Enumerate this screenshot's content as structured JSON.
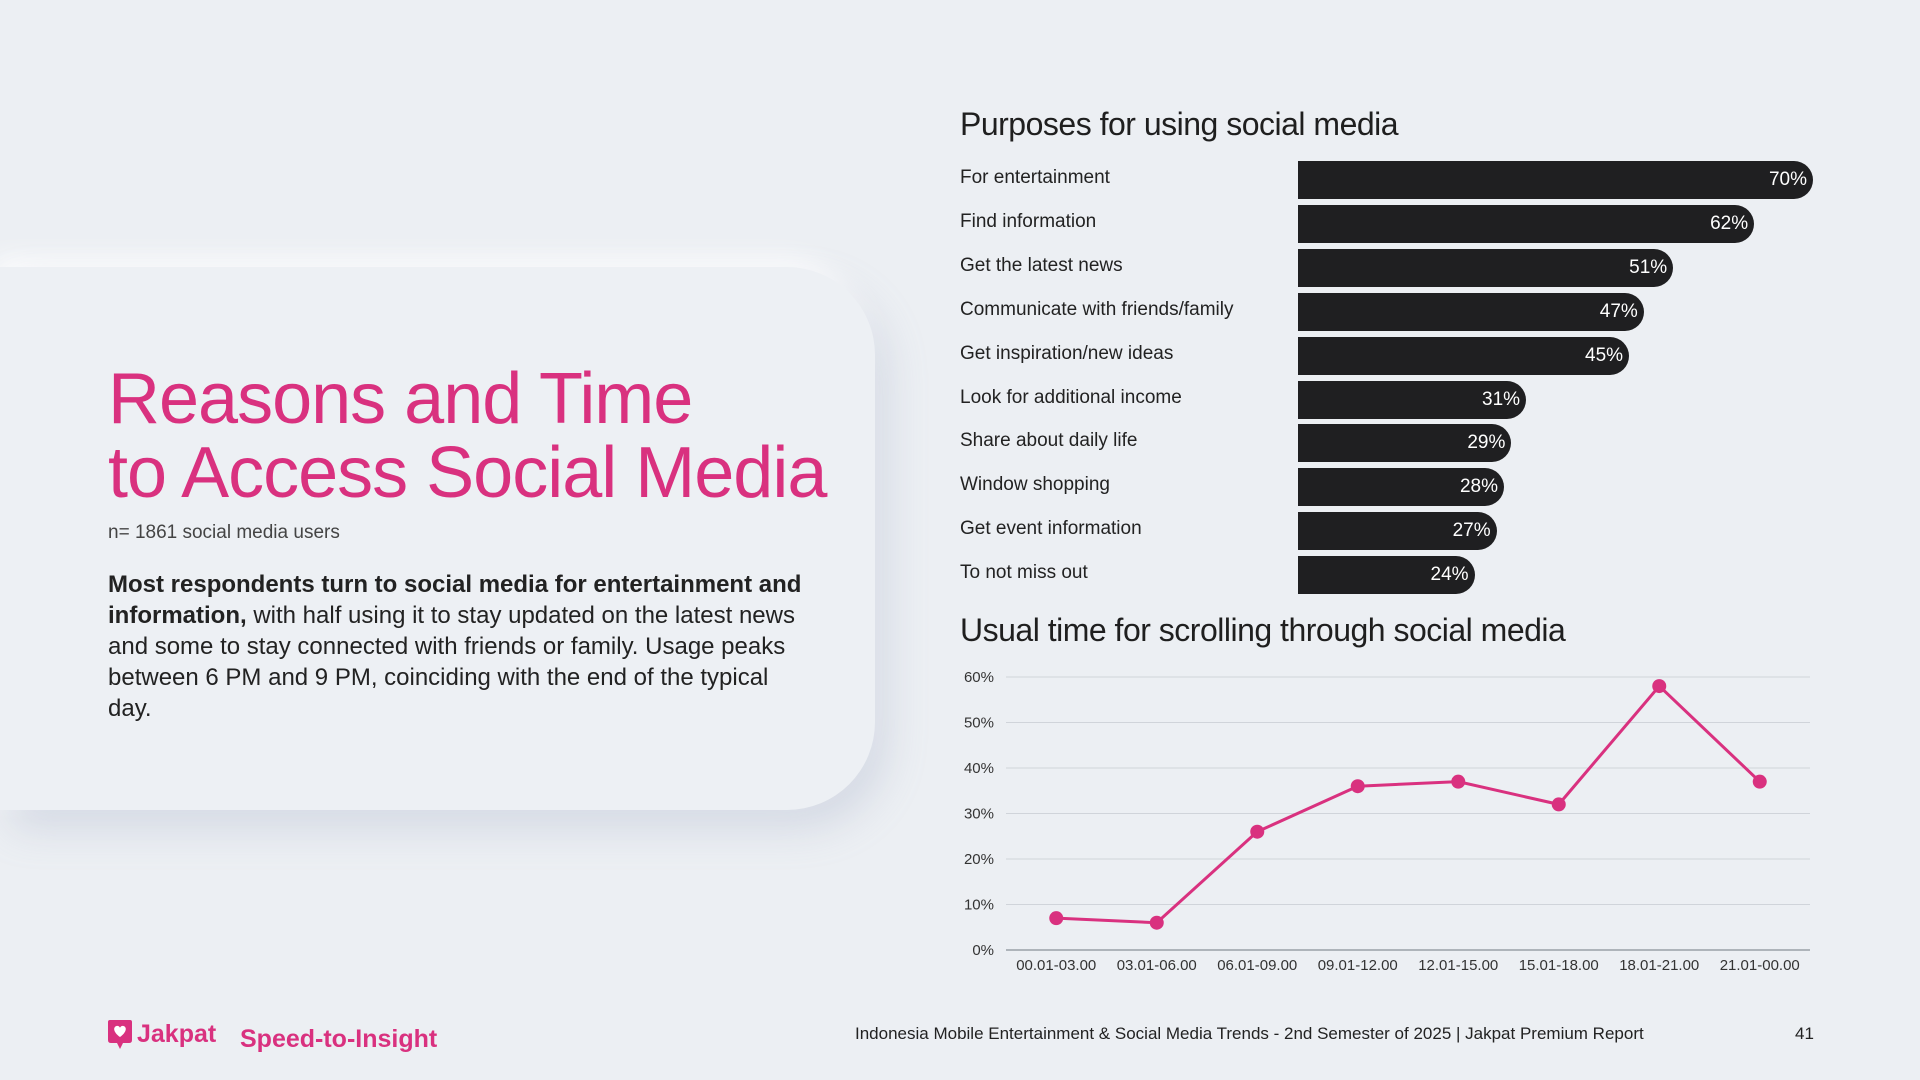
{
  "left": {
    "title_line1": "Reasons and Time",
    "title_line2": "to Access Social Media",
    "sample": "n= 1861 social media users",
    "desc_bold": "Most respondents turn to social media for entertainment and information,",
    "desc_rest": " with half using it to stay updated on the latest news and some to stay connected with friends or family. Usage peaks between 6 PM and 9 PM, coinciding with the end of the typical day."
  },
  "chart_data": [
    {
      "type": "bar",
      "title": "Purposes for using social media",
      "categories": [
        "For entertainment",
        "Find information",
        "Get the latest news",
        "Communicate with friends/family",
        "Get inspiration/new ideas",
        "Look for additional income",
        "Share about daily life",
        "Window shopping",
        "Get event information",
        "To not miss out"
      ],
      "values": [
        70,
        62,
        51,
        47,
        45,
        31,
        29,
        28,
        27,
        24
      ],
      "value_labels": [
        "70%",
        "62%",
        "51%",
        "47%",
        "45%",
        "31%",
        "29%",
        "28%",
        "27%",
        "24%"
      ],
      "xlim": [
        0,
        70
      ],
      "bar_color": "#1f1f21"
    },
    {
      "type": "line",
      "title": "Usual time for scrolling through social media",
      "categories": [
        "00.01-03.00",
        "03.01-06.00",
        "06.01-09.00",
        "09.01-12.00",
        "12.01-15.00",
        "15.01-18.00",
        "18.01-21.00",
        "21.01-00.00"
      ],
      "values": [
        7,
        6,
        26,
        36,
        37,
        32,
        58,
        37
      ],
      "ylim": [
        0,
        60
      ],
      "yticks": [
        "0%",
        "10%",
        "20%",
        "30%",
        "40%",
        "50%",
        "60%"
      ],
      "grid": true,
      "line_color": "#d9317f"
    }
  ],
  "footer": {
    "logo": "Jakpat",
    "tagline": "Speed-to-Insight",
    "report": "Indonesia Mobile Entertainment & Social Media Trends - 2nd Semester of 2025 | Jakpat Premium Report",
    "page": "41"
  },
  "colors": {
    "accent": "#d9317f",
    "text": "#222222",
    "background": "#eceff3"
  }
}
